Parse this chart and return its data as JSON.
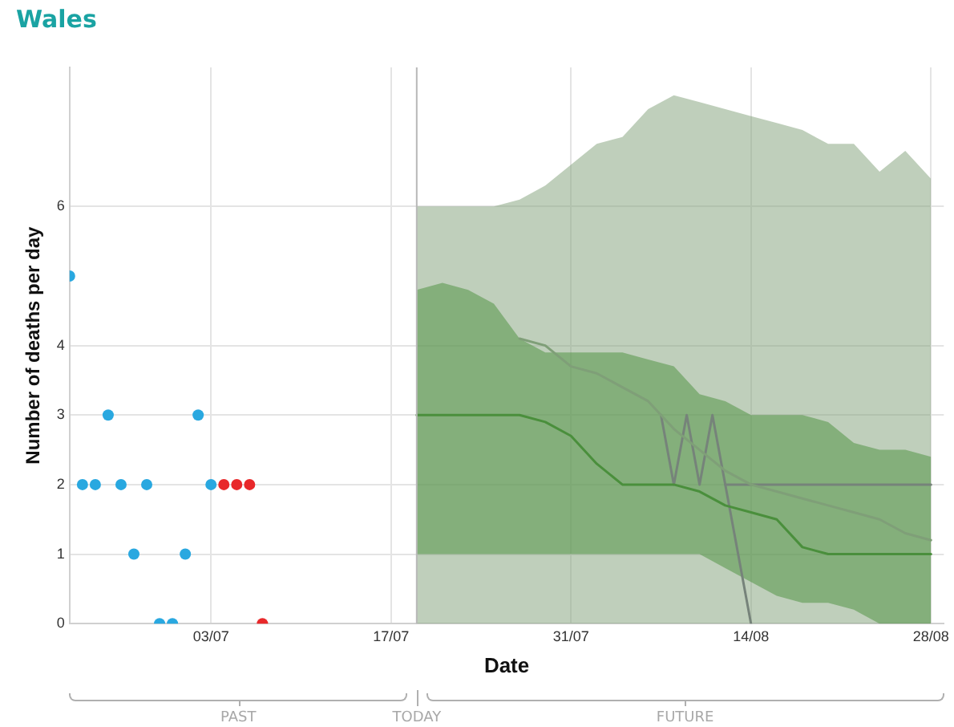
{
  "chart_data": {
    "type": "line",
    "title": "Wales",
    "xlabel": "Date",
    "ylabel": "Number of deaths per day",
    "grid": true,
    "legend": false,
    "xlim": [
      "--06-22",
      "--08-29"
    ],
    "xticks": [
      {
        "value": "--07-03",
        "label": "03/07"
      },
      {
        "value": "--07-17",
        "label": "17/07"
      },
      {
        "value": "--07-31",
        "label": "31/07"
      },
      {
        "value": "--08-14",
        "label": "14/08"
      },
      {
        "value": "--08-28",
        "label": "28/08"
      }
    ],
    "ylim": [
      0,
      8
    ],
    "yticks": [
      0,
      1,
      2,
      3,
      4,
      6
    ],
    "ref_lines": [
      {
        "axis": "x",
        "value": "--07-19",
        "label": "TODAY",
        "color": "#b8b8b8"
      }
    ],
    "annotations": [
      "PAST",
      "FUTURE"
    ],
    "series": [
      {
        "type": "scatter",
        "marker": "circle",
        "color": "#29a8e0",
        "x": [
          "--06-22",
          "--06-23",
          "--06-24",
          "--06-25",
          "--06-26",
          "--06-27",
          "--06-28",
          "--06-29",
          "--06-30",
          "--07-01",
          "--07-02",
          "--07-03"
        ],
        "values": [
          5,
          2,
          2,
          3,
          2,
          1,
          2,
          0,
          0,
          1,
          3,
          2
        ]
      },
      {
        "type": "scatter",
        "marker": "circle",
        "color": "#e8282a",
        "x": [
          "--07-04",
          "--07-05",
          "--07-06",
          "--07-07"
        ],
        "values": [
          2,
          2,
          2,
          0
        ]
      },
      {
        "color": "#4a8f3c",
        "x": [
          "--07-19",
          "--07-21",
          "--07-23",
          "--07-25",
          "--07-27",
          "--07-29",
          "--07-31",
          "--08-02",
          "--08-04",
          "--08-06",
          "--08-08",
          "--08-10",
          "--08-12",
          "--08-14",
          "--08-16",
          "--08-18",
          "--08-20",
          "--08-22",
          "--08-24",
          "--08-26",
          "--08-28"
        ],
        "values": [
          3,
          3,
          3,
          3,
          3,
          2.9,
          2.7,
          2.3,
          2,
          2,
          2,
          1.9,
          1.7,
          1.6,
          1.5,
          1.1,
          1,
          1,
          1,
          1,
          1
        ],
        "lower": [
          1,
          1,
          1,
          1,
          1,
          1,
          1,
          1,
          1,
          1,
          1,
          1,
          0.8,
          0.6,
          0.4,
          0.3,
          0.3,
          0.2,
          0,
          0,
          0
        ],
        "upper": [
          4.8,
          4.9,
          4.8,
          4.6,
          4.1,
          3.9,
          3.9,
          3.9,
          3.9,
          3.8,
          3.7,
          3.3,
          3.2,
          3,
          3,
          3,
          2.9,
          2.6,
          2.5,
          2.5,
          2.4
        ]
      },
      {
        "color": "#7f9f78",
        "x": [
          "--07-19",
          "--07-21",
          "--07-23",
          "--07-25",
          "--07-27",
          "--07-29",
          "--07-31",
          "--08-02",
          "--08-04",
          "--08-06",
          "--08-08",
          "--08-10",
          "--08-12",
          "--08-14",
          "--08-16",
          "--08-18",
          "--08-20",
          "--08-22",
          "--08-24",
          "--08-26",
          "--08-28"
        ],
        "values": [
          null,
          null,
          null,
          null,
          4.1,
          4,
          3.7,
          3.6,
          3.4,
          3.2,
          2.8,
          2.5,
          2.2,
          2,
          1.9,
          1.8,
          1.7,
          1.6,
          1.5,
          1.3,
          1.2
        ],
        "lower": [
          0,
          0,
          0,
          0,
          0,
          0,
          0,
          0,
          0,
          0,
          0,
          0,
          0,
          0,
          0,
          0,
          0,
          0,
          0,
          0,
          0
        ],
        "upper": [
          6,
          6,
          6,
          6,
          6.1,
          6.3,
          6.6,
          6.9,
          7,
          7.4,
          7.6,
          7.5,
          7.4,
          7.3,
          7.2,
          7.1,
          6.9,
          6.9,
          6.5,
          6.8,
          6.4
        ]
      },
      {
        "color": "#76837a",
        "x": [
          "--08-07",
          "--08-08",
          "--08-09",
          "--08-10",
          "--08-11",
          "--08-12",
          "--08-28"
        ],
        "values": [
          3,
          2,
          3,
          2,
          3,
          2,
          2
        ]
      },
      {
        "color": "#76837a",
        "x": [
          "--08-12",
          "--08-14"
        ],
        "values": [
          2,
          0
        ]
      }
    ]
  }
}
